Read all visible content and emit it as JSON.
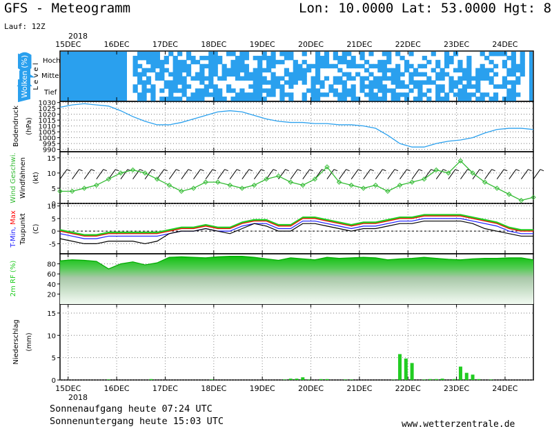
{
  "header": {
    "title": "GFS - Meteogramm",
    "location": "Lon: 10.0000 Lat: 53.0000 Hgt: 8",
    "run": "Lauf: 12Z"
  },
  "footer": {
    "sunrise": "Sonnenaufgang heute 07:24 UTC",
    "sunset": "Sonnenuntergang heute 15:03 UTC",
    "website": "www.wetterzentrale.de"
  },
  "colors": {
    "cloud": "#2aa0ee",
    "pressure": "#2aa0ee",
    "wind": "#33bb33",
    "tmax": "#ff0000",
    "tmin": "#1a1aff",
    "dewpoint": "#000000",
    "humidity": "#22cc22",
    "precip": "#22cc22"
  },
  "chart_data": [
    {
      "type": "heatmap",
      "ylabel": "Wolken (%)",
      "ylabel2": "L e v e l",
      "levels": [
        "Hoch",
        "Mittel",
        "Tief"
      ],
      "xlim": [
        0,
        234
      ]
    },
    {
      "type": "line",
      "ylabel": "Bodendruck",
      "unit": "(hPa)",
      "ylim": [
        988,
        1031
      ],
      "yticks": [
        990,
        995,
        1000,
        1005,
        1010,
        1015,
        1020,
        1025,
        1030
      ],
      "x": [
        0,
        6,
        12,
        18,
        24,
        30,
        36,
        42,
        48,
        54,
        60,
        66,
        72,
        78,
        84,
        90,
        96,
        102,
        108,
        114,
        120,
        126,
        132,
        138,
        144,
        150,
        156,
        162,
        168,
        174,
        180,
        186,
        192,
        198,
        204,
        210,
        216,
        222,
        228,
        234
      ],
      "series": [
        {
          "values": [
            1026,
            1028,
            1029,
            1028,
            1027,
            1023,
            1018,
            1014,
            1011,
            1011,
            1013,
            1016,
            1019,
            1022,
            1023,
            1022,
            1019,
            1016,
            1014,
            1013,
            1013,
            1012,
            1012,
            1011,
            1011,
            1010,
            1008,
            1002,
            995,
            992,
            992,
            995,
            997,
            998,
            1000,
            1004,
            1007,
            1008,
            1008,
            1007
          ]
        }
      ]
    },
    {
      "type": "line",
      "ylabel": "Wind Geschwi.",
      "ylabel2": "Windfahnen",
      "unit": "(kt)",
      "ylim": [
        0,
        17
      ],
      "yticks": [
        0,
        5,
        10,
        15
      ],
      "x": [
        0,
        6,
        12,
        18,
        24,
        30,
        36,
        42,
        48,
        54,
        60,
        66,
        72,
        78,
        84,
        90,
        96,
        102,
        108,
        114,
        120,
        126,
        132,
        138,
        144,
        150,
        156,
        162,
        168,
        174,
        180,
        186,
        192,
        198,
        204,
        210,
        216,
        222,
        228,
        234
      ],
      "series": [
        {
          "name": "Wind Geschwi.",
          "values": [
            4,
            4,
            5,
            6,
            8,
            10,
            11,
            10,
            8,
            6,
            4,
            5,
            7,
            7,
            6,
            5,
            6,
            8,
            9,
            7,
            6,
            8,
            12,
            7,
            6,
            5,
            6,
            4,
            6,
            7,
            8,
            11,
            10,
            14,
            10,
            7,
            5,
            3,
            1,
            2
          ]
        }
      ]
    },
    {
      "type": "line",
      "ylabel": "T-Min, Max",
      "ylabel2": "Taupunkt",
      "unit": "(C)",
      "ylim": [
        -9,
        11
      ],
      "yticks": [
        -5,
        0,
        5,
        10
      ],
      "x": [
        0,
        6,
        12,
        18,
        24,
        30,
        36,
        42,
        48,
        54,
        60,
        66,
        72,
        78,
        84,
        90,
        96,
        102,
        108,
        114,
        120,
        126,
        132,
        138,
        144,
        150,
        156,
        162,
        168,
        174,
        180,
        186,
        192,
        198,
        204,
        210,
        216,
        222,
        228,
        234
      ],
      "series": [
        {
          "name": "T-Max",
          "values": [
            0,
            -1,
            -2,
            -2,
            -1,
            -1,
            -1,
            -1,
            -1,
            0,
            1,
            1,
            2,
            1,
            1,
            3,
            4,
            4,
            2,
            2,
            5,
            5,
            4,
            3,
            2,
            3,
            3,
            4,
            5,
            5,
            6,
            6,
            6,
            6,
            5,
            4,
            3,
            1,
            0,
            0
          ]
        },
        {
          "name": "T-Min",
          "values": [
            -1,
            -2,
            -3,
            -3,
            -2,
            -2,
            -2,
            -2,
            -2,
            -1,
            0,
            0,
            1,
            0,
            0,
            2,
            3,
            3,
            1,
            1,
            4,
            4,
            3,
            2,
            1,
            2,
            2,
            3,
            4,
            4,
            5,
            5,
            5,
            5,
            4,
            3,
            2,
            0,
            -1,
            -1
          ]
        },
        {
          "name": "Taupunkt",
          "values": [
            -3,
            -4,
            -5,
            -5,
            -4,
            -4,
            -4,
            -5,
            -4,
            -1,
            0,
            0,
            1,
            0,
            -1,
            1,
            3,
            2,
            0,
            0,
            3,
            3,
            2,
            1,
            0,
            1,
            1,
            2,
            3,
            3,
            4,
            4,
            4,
            4,
            3,
            1,
            0,
            -1,
            -2,
            -2
          ]
        }
      ]
    },
    {
      "type": "area",
      "ylabel": "2m RF (%)",
      "ylim": [
        0,
        100
      ],
      "yticks": [
        20,
        40,
        60,
        80
      ],
      "x": [
        0,
        6,
        12,
        18,
        24,
        30,
        36,
        42,
        48,
        54,
        60,
        66,
        72,
        78,
        84,
        90,
        96,
        102,
        108,
        114,
        120,
        126,
        132,
        138,
        144,
        150,
        156,
        162,
        168,
        174,
        180,
        186,
        192,
        198,
        204,
        210,
        216,
        222,
        228,
        234
      ],
      "series": [
        {
          "values": [
            86,
            88,
            87,
            85,
            70,
            80,
            84,
            78,
            82,
            93,
            94,
            93,
            92,
            94,
            95,
            95,
            93,
            90,
            87,
            92,
            90,
            88,
            93,
            91,
            92,
            93,
            92,
            88,
            90,
            91,
            93,
            91,
            89,
            88,
            90,
            91,
            91,
            92,
            92,
            88
          ]
        }
      ]
    },
    {
      "type": "bar",
      "ylabel": "Niederschlag",
      "unit": "(mm)",
      "ylim": [
        0,
        17
      ],
      "yticks": [
        0,
        5,
        10,
        15
      ],
      "x": [
        24,
        45,
        75,
        111,
        114,
        117,
        120,
        123,
        129,
        132,
        141,
        144,
        165,
        168,
        171,
        174,
        180,
        183,
        186,
        189,
        195,
        198,
        201,
        204,
        207,
        213
      ],
      "values": [
        0.1,
        0.2,
        0.1,
        0.1,
        0.3,
        0.3,
        0.6,
        0.1,
        0.2,
        0.2,
        0.1,
        0.1,
        0.1,
        5.8,
        4.8,
        3.8,
        0.1,
        0.2,
        0.2,
        0.3,
        0.2,
        3.0,
        1.6,
        1.2,
        0.2,
        0.1
      ]
    }
  ],
  "axis": {
    "top_labels": [
      "15DEC",
      "16DEC",
      "17DEC",
      "18DEC",
      "19DEC",
      "20DEC",
      "21DEC",
      "22DEC",
      "23DEC",
      "24DEC"
    ],
    "year_top": "2018",
    "bottom_labels": [
      "15DEC",
      "16DEC",
      "17DEC",
      "18DEC",
      "19DEC",
      "20DEC",
      "21DEC",
      "22DEC",
      "23DEC",
      "24DEC"
    ],
    "year_bottom": "2018"
  }
}
